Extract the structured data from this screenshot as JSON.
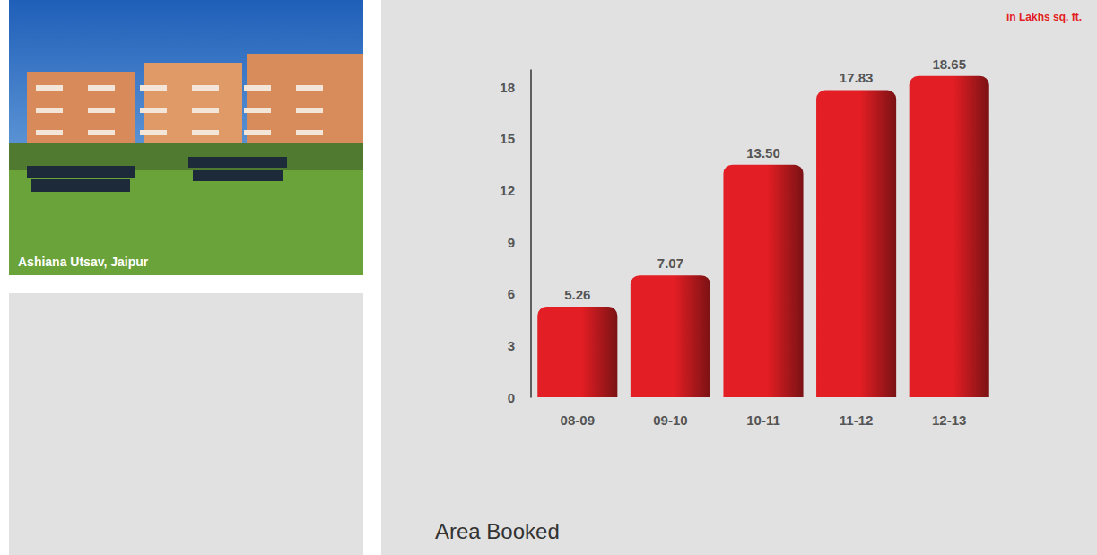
{
  "chart_data": {
    "type": "bar",
    "title": "Area Booked",
    "subtitle": "in Lakhs sq. ft.",
    "categories": [
      "08-09",
      "09-10",
      "10-11",
      "11-12",
      "12-13"
    ],
    "values": [
      5.26,
      7.07,
      13.5,
      17.83,
      18.65
    ],
    "value_labels": [
      "5.26",
      "7.07",
      "13.50",
      "17.83",
      "18.65"
    ],
    "color": "#e31e24",
    "ylim": [
      0,
      19
    ],
    "yticks": [
      0,
      3,
      6,
      9,
      12,
      15,
      18
    ],
    "grid": false,
    "data_labels": true
  },
  "photo": {
    "caption": "Ashiana Utsav, Jaipur"
  }
}
